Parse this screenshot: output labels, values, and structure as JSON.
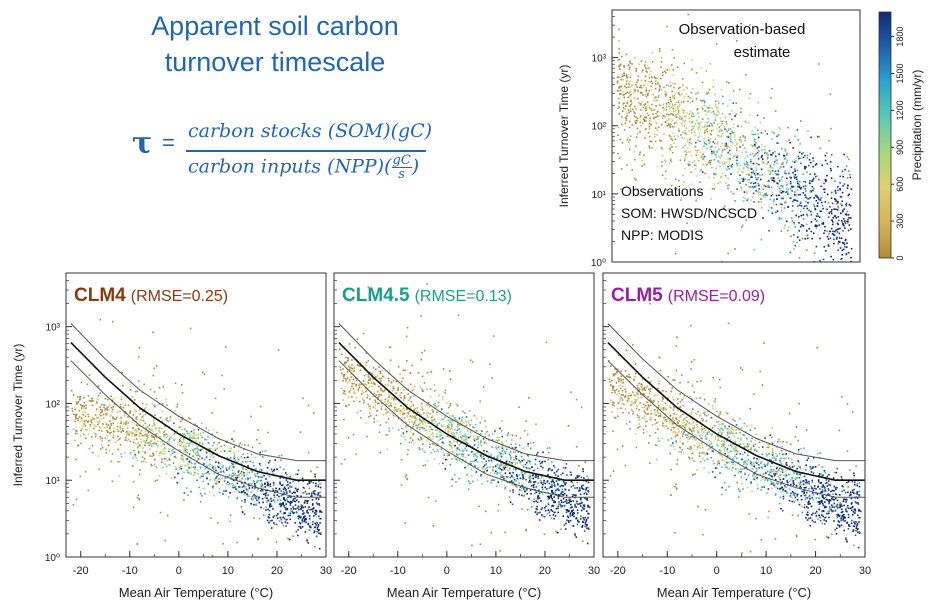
{
  "header": {
    "title_line1": "Apparent soil carbon",
    "title_line2": "turnover timescale",
    "tau": "τ",
    "equals": "=",
    "numerator": "carbon stocks (SOM)(gC)",
    "denominator_main": "carbon inputs (NPP)(",
    "denominator_frac_top": "gC",
    "denominator_frac_bottom": "s",
    "denominator_close": ")"
  },
  "colors": {
    "title_blue": "#1f66b5",
    "clm4": "#8b3a0f",
    "clm45": "#1a9e8e",
    "clm5": "#9b1fa6",
    "colormap": [
      "#b08b3a",
      "#d6b45a",
      "#dcd070",
      "#a8d77e",
      "#5cc9b4",
      "#2aa6cf",
      "#1f5fae",
      "#102a72"
    ]
  },
  "chart_data": [
    {
      "type": "scatter",
      "panel": "observation",
      "title": "Observation-based estimate",
      "title_line1": "Observation-based",
      "title_line2": "estimate",
      "ylabel": "Inferred Turnover Time (yr)",
      "yscale": "log",
      "ylim": [
        1,
        5000
      ],
      "y_ticks": [
        "10⁰",
        "10¹",
        "10²",
        "10³"
      ],
      "xlim": [
        -23,
        32
      ],
      "annotations": [
        "Observations",
        "SOM:  HWSD/NCSCD",
        "NPP:  MODIS"
      ],
      "colorbar": {
        "label": "Precipitation (mm/yr)",
        "ticks": [
          "0",
          "300",
          "600",
          "900",
          "1200",
          "1500",
          "1800"
        ],
        "range": [
          0,
          2000
        ]
      }
    },
    {
      "type": "scatter",
      "panel": "CLM4",
      "label_model": "CLM4",
      "label_rmse": "(RMSE=0.25)",
      "xlabel": "Mean Air Temperature (°C)",
      "ylabel": "Inferred Turnover Time (yr)",
      "yscale": "log",
      "ylim": [
        1,
        5000
      ],
      "xlim": [
        -23,
        30
      ],
      "x_ticks": [
        "-20",
        "-10",
        "0",
        "10",
        "20",
        "30"
      ],
      "y_ticks": [
        "10⁰",
        "10¹",
        "10²",
        "10³"
      ],
      "reference_curves": [
        {
          "x": [
            -22,
            -15,
            -8,
            0,
            8,
            16,
            24,
            30
          ],
          "y": [
            1100,
            380,
            150,
            68,
            35,
            22,
            18,
            18
          ]
        },
        {
          "x": [
            -22,
            -15,
            -8,
            0,
            8,
            16,
            24,
            30
          ],
          "y": [
            620,
            220,
            88,
            40,
            21,
            13,
            10,
            10
          ]
        },
        {
          "x": [
            -22,
            -15,
            -8,
            0,
            8,
            16,
            24,
            30
          ],
          "y": [
            360,
            130,
            52,
            24,
            12,
            8,
            6,
            6
          ]
        }
      ]
    },
    {
      "type": "scatter",
      "panel": "CLM4.5",
      "label_model": "CLM4.5",
      "label_rmse": "(RMSE=0.13)",
      "xlabel": "Mean Air Temperature (°C)",
      "yscale": "log",
      "ylim": [
        1,
        5000
      ],
      "xlim": [
        -23,
        30
      ],
      "x_ticks": [
        "-20",
        "-10",
        "0",
        "10",
        "20",
        "30"
      ]
    },
    {
      "type": "scatter",
      "panel": "CLM5",
      "label_model": "CLM5",
      "label_rmse": "(RMSE=0.09)",
      "xlabel": "Mean Air Temperature (°C)",
      "yscale": "log",
      "ylim": [
        1,
        5000
      ],
      "xlim": [
        -23,
        30
      ],
      "x_ticks": [
        "-20",
        "-10",
        "0",
        "10",
        "20",
        "30"
      ]
    }
  ]
}
